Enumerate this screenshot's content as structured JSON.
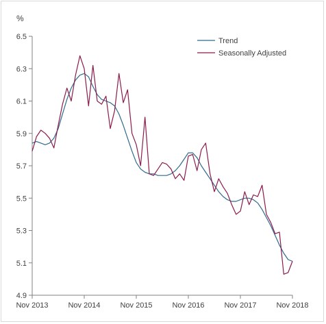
{
  "chart_data": {
    "type": "line",
    "ylabel": "%",
    "ylim": [
      4.9,
      6.5
    ],
    "y_ticks": [
      "6.5",
      "6.3",
      "6.1",
      "5.9",
      "5.7",
      "5.5",
      "5.3",
      "5.1",
      "4.9"
    ],
    "x_tick_labels": [
      "Nov 2013",
      "Nov 2014",
      "Nov 2015",
      "Nov 2016",
      "Nov 2017",
      "Nov 2018"
    ],
    "x_range_months_from_nov_2013": [
      0,
      60
    ],
    "legend_placement": "top-right",
    "grid": false,
    "series": [
      {
        "name": "Trend",
        "color": "#2e6a8e",
        "x": [
          0,
          1,
          2,
          3,
          4,
          5,
          6,
          7,
          8,
          9,
          10,
          11,
          12,
          13,
          14,
          15,
          16,
          17,
          18,
          19,
          20,
          21,
          22,
          23,
          24,
          25,
          26,
          27,
          28,
          29,
          30,
          31,
          32,
          33,
          34,
          35,
          36,
          37,
          38,
          39,
          40,
          41,
          42,
          43,
          44,
          45,
          46,
          47,
          48,
          49,
          50,
          51,
          52,
          53,
          54,
          55,
          56,
          57,
          58,
          59,
          60
        ],
        "values": [
          5.84,
          5.85,
          5.84,
          5.83,
          5.84,
          5.87,
          5.93,
          6.02,
          6.11,
          6.18,
          6.23,
          6.26,
          6.27,
          6.25,
          6.19,
          6.14,
          6.11,
          6.1,
          6.09,
          6.07,
          6.02,
          5.95,
          5.87,
          5.79,
          5.72,
          5.68,
          5.66,
          5.65,
          5.65,
          5.64,
          5.64,
          5.64,
          5.65,
          5.67,
          5.7,
          5.74,
          5.78,
          5.78,
          5.75,
          5.7,
          5.66,
          5.62,
          5.58,
          5.54,
          5.51,
          5.49,
          5.48,
          5.48,
          5.49,
          5.5,
          5.5,
          5.49,
          5.47,
          5.43,
          5.38,
          5.33,
          5.27,
          5.21,
          5.16,
          5.12,
          5.11
        ]
      },
      {
        "name": "Seasonally Adjusted",
        "color": "#8b1a4b",
        "x": [
          0,
          1,
          2,
          3,
          4,
          5,
          6,
          7,
          8,
          9,
          10,
          11,
          12,
          13,
          14,
          15,
          16,
          17,
          18,
          19,
          20,
          21,
          22,
          23,
          24,
          25,
          26,
          27,
          28,
          29,
          30,
          31,
          32,
          33,
          34,
          35,
          36,
          37,
          38,
          39,
          40,
          41,
          42,
          43,
          44,
          45,
          46,
          47,
          48,
          49,
          50,
          51,
          52,
          53,
          54,
          55,
          56,
          57,
          58,
          59,
          60
        ],
        "values": [
          5.79,
          5.88,
          5.92,
          5.9,
          5.87,
          5.81,
          5.95,
          6.08,
          6.18,
          6.1,
          6.26,
          6.38,
          6.3,
          6.07,
          6.32,
          6.1,
          6.08,
          6.13,
          5.93,
          6.04,
          6.27,
          6.09,
          6.17,
          5.9,
          5.83,
          5.7,
          6.0,
          5.65,
          5.64,
          5.68,
          5.72,
          5.71,
          5.68,
          5.62,
          5.65,
          5.61,
          5.76,
          5.77,
          5.67,
          5.8,
          5.84,
          5.65,
          5.54,
          5.62,
          5.57,
          5.53,
          5.46,
          5.4,
          5.42,
          5.54,
          5.46,
          5.52,
          5.51,
          5.58,
          5.4,
          5.35,
          5.28,
          5.29,
          5.03,
          5.04,
          5.11
        ]
      }
    ]
  }
}
